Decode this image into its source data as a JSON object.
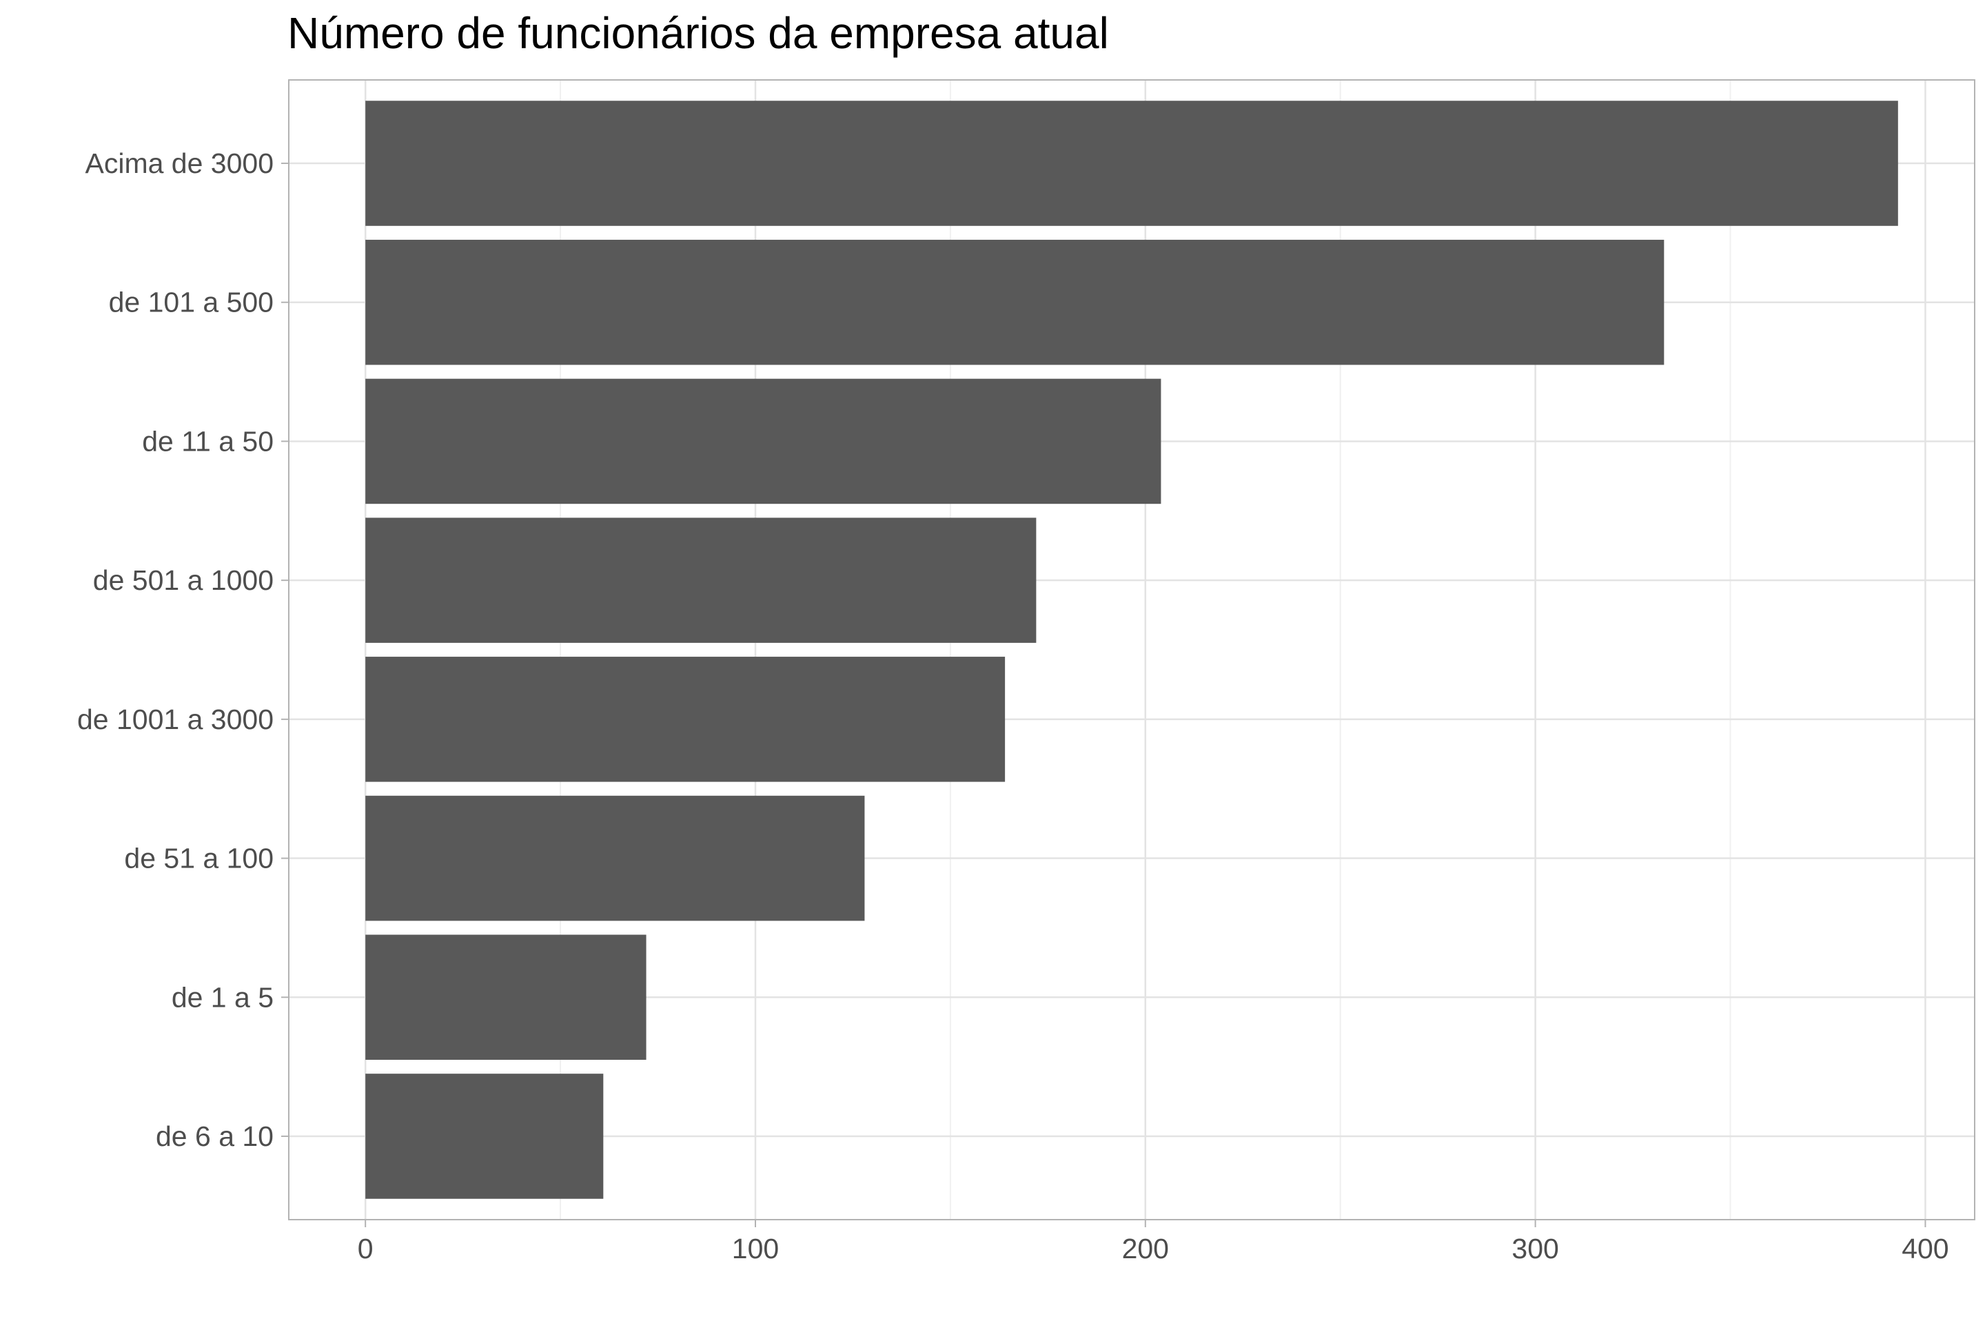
{
  "chart_data": {
    "type": "bar",
    "orientation": "horizontal",
    "title": "Número de funcionários da empresa atual",
    "xlabel": "",
    "ylabel": "",
    "categories": [
      "Acima de 3000",
      "de 101 a 500",
      "de 11 a 50",
      "de 501 a 1000",
      "de 1001 a 3000",
      "de 51 a 100",
      "de 1 a 5",
      "de 6 a 10"
    ],
    "values": [
      393,
      333,
      204,
      172,
      164,
      128,
      72,
      61
    ],
    "xlim": [
      -19.65,
      412.65
    ],
    "x_ticks": [
      0,
      100,
      200,
      300,
      400
    ],
    "x_tick_labels": [
      "0",
      "100",
      "200",
      "300",
      "400"
    ],
    "grid": true,
    "legend": "none",
    "colors": {
      "bar": "#595959",
      "panel_border": "#b3b3b3",
      "grid_major": "#e3e3e3",
      "grid_minor": "#f0f0f0",
      "tick_label": "#4d4d4d",
      "title": "#000000"
    }
  }
}
